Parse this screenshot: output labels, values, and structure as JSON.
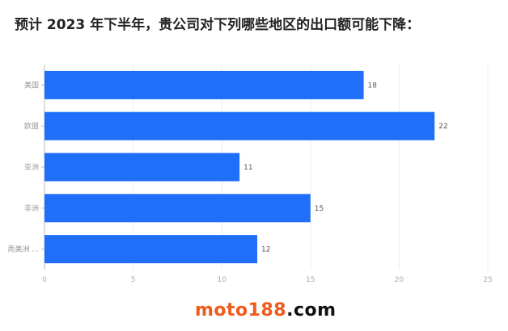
{
  "chart_data": {
    "type": "bar",
    "orientation": "horizontal",
    "title": "预计 2023 年下半年，贵公司对下列哪些地区的出口额可能下降：",
    "categories": [
      "美国",
      "欧盟",
      "亚洲",
      "非洲",
      "南美洲 ..."
    ],
    "values": [
      18,
      22,
      11,
      15,
      12
    ],
    "xlim": [
      0,
      25
    ],
    "xticks": [
      0,
      5,
      10,
      15,
      20,
      25
    ],
    "grid": true,
    "bar_color": "#1f6ffb"
  },
  "watermark": {
    "part1": "moto188",
    "part2": ".com"
  }
}
